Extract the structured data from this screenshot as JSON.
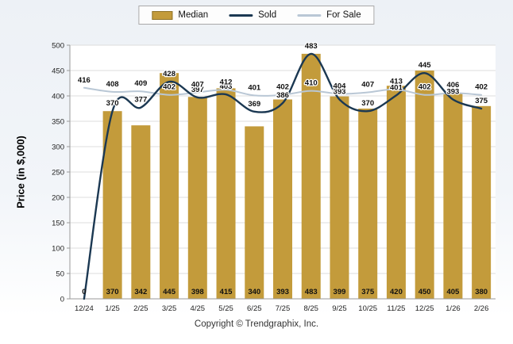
{
  "legend": {
    "items": [
      {
        "label": "Median",
        "type": "bar",
        "color": "#C39B3B"
      },
      {
        "label": "Sold",
        "type": "line",
        "color": "#1B3852"
      },
      {
        "label": "For Sale",
        "type": "line",
        "color": "#B9C7D5"
      }
    ]
  },
  "y_axis": {
    "title": "Price (in $,000)",
    "ticks": [
      0,
      50,
      100,
      150,
      200,
      250,
      300,
      350,
      400,
      450,
      500
    ]
  },
  "footer": {
    "copyright": "Copyright © Trendgraphix, Inc."
  },
  "chart_data": {
    "type": "combo",
    "categories": [
      "12/24",
      "1/25",
      "2/25",
      "3/25",
      "4/25",
      "5/25",
      "6/25",
      "7/25",
      "8/25",
      "9/25",
      "10/25",
      "11/25",
      "12/25",
      "1/26",
      "2/26"
    ],
    "series": [
      {
        "name": "Median",
        "type": "bar",
        "color": "#C39B3B",
        "values": [
          0,
          370,
          342,
          445,
          398,
          415,
          340,
          393,
          483,
          399,
          375,
          420,
          450,
          405,
          380
        ]
      },
      {
        "name": "Sold",
        "type": "line",
        "color": "#1B3852",
        "values": [
          0,
          370,
          377,
          428,
          397,
          403,
          369,
          386,
          483,
          393,
          370,
          401,
          445,
          393,
          375
        ]
      },
      {
        "name": "For Sale",
        "type": "line",
        "color": "#B9C7D5",
        "values": [
          416,
          408,
          409,
          402,
          407,
          412,
          401,
          402,
          410,
          404,
          407,
          413,
          402,
          406,
          402
        ]
      }
    ],
    "title": "",
    "xlabel": "",
    "ylabel": "Price (in $,000)",
    "ylim": [
      0,
      500
    ],
    "ytick_step": 50,
    "grid": true,
    "legend_position": "top",
    "value_labels": true
  }
}
